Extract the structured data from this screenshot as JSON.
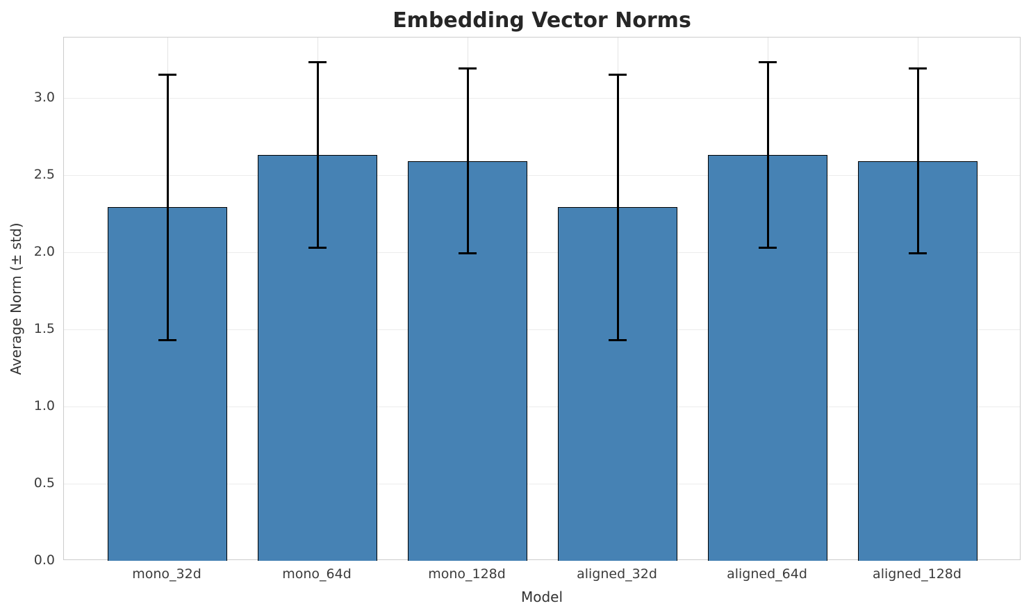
{
  "chart_data": {
    "type": "bar",
    "title": "Embedding Vector Norms",
    "xlabel": "Model",
    "ylabel": "Average Norm (± std)",
    "categories": [
      "mono_32d",
      "mono_64d",
      "mono_128d",
      "aligned_32d",
      "aligned_64d",
      "aligned_128d"
    ],
    "series": [
      {
        "name": "Average Norm",
        "values": [
          2.29,
          2.63,
          2.59,
          2.29,
          2.63,
          2.59
        ],
        "errors": [
          0.86,
          0.6,
          0.6,
          0.86,
          0.6,
          0.6
        ]
      }
    ],
    "ylim": [
      0,
      3.39
    ],
    "yticks": [
      0.0,
      0.5,
      1.0,
      1.5,
      2.0,
      2.5,
      3.0
    ],
    "grid": true,
    "legend_position": "none",
    "error_caps": {
      "upper": [
        3.15,
        3.23,
        3.19,
        3.15,
        3.23,
        3.19
      ],
      "lower": [
        1.43,
        2.03,
        1.99,
        1.43,
        2.03,
        1.99
      ]
    },
    "colors": {
      "bar_fill": "#4682b4",
      "bar_edge": "#000000",
      "error_bar": "#000000",
      "grid_line_h": "#ececec",
      "grid_line_v": "#e4e4e4",
      "spine": "#cccccc",
      "title_text": "#262626",
      "tick_text": "#3b3b3b"
    }
  }
}
